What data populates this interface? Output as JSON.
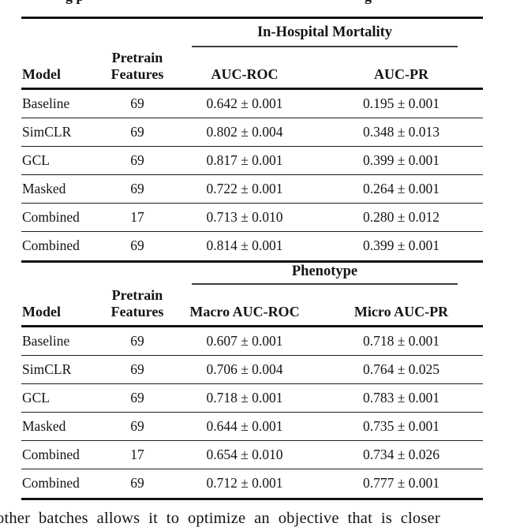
{
  "page": {
    "top_clipped_fragment_left": "g p",
    "top_clipped_fragment_right": "g",
    "bottom_clipped_text": "other batches allows it to optimize an objective that is closer"
  },
  "tables": {
    "t1": {
      "group_header": "In-Hospital Mortality",
      "headers": {
        "model": "Model",
        "pretrain_line1": "Pretrain",
        "pretrain_line2": "Features",
        "metric1": "AUC-ROC",
        "metric2": "AUC-PR"
      },
      "rows": [
        {
          "model": "Baseline",
          "features": "69",
          "m1": "0.642 ± 0.001",
          "m2": "0.195 ± 0.001"
        },
        {
          "model": "SimCLR",
          "features": "69",
          "m1": "0.802 ± 0.004",
          "m2": "0.348 ± 0.013"
        },
        {
          "model": "GCL",
          "features": "69",
          "m1": "0.817 ± 0.001",
          "m2": "0.399 ± 0.001"
        },
        {
          "model": "Masked",
          "features": "69",
          "m1": "0.722 ± 0.001",
          "m2": "0.264 ± 0.001"
        },
        {
          "model": "Combined",
          "features": "17",
          "m1": "0.713 ± 0.010",
          "m2": "0.280 ± 0.012"
        },
        {
          "model": "Combined",
          "features": "69",
          "m1": "0.814 ± 0.001",
          "m2": "0.399 ± 0.001"
        }
      ]
    },
    "t2": {
      "group_header": "Phenotype",
      "headers": {
        "model": "Model",
        "pretrain_line1": "Pretrain",
        "pretrain_line2": "Features",
        "metric1": "Macro AUC-ROC",
        "metric2": "Micro AUC-PR"
      },
      "rows": [
        {
          "model": "Baseline",
          "features": "69",
          "m1": "0.607 ± 0.001",
          "m2": "0.718 ± 0.001"
        },
        {
          "model": "SimCLR",
          "features": "69",
          "m1": "0.706 ± 0.004",
          "m2": "0.764 ± 0.025"
        },
        {
          "model": "GCL",
          "features": "69",
          "m1": "0.718 ± 0.001",
          "m2": "0.783 ± 0.001"
        },
        {
          "model": "Masked",
          "features": "69",
          "m1": "0.644 ± 0.001",
          "m2": "0.735 ± 0.001"
        },
        {
          "model": "Combined",
          "features": "17",
          "m1": "0.654 ± 0.010",
          "m2": "0.734 ± 0.026"
        },
        {
          "model": "Combined",
          "features": "69",
          "m1": "0.712 ± 0.001",
          "m2": "0.777 ± 0.001"
        }
      ]
    }
  }
}
